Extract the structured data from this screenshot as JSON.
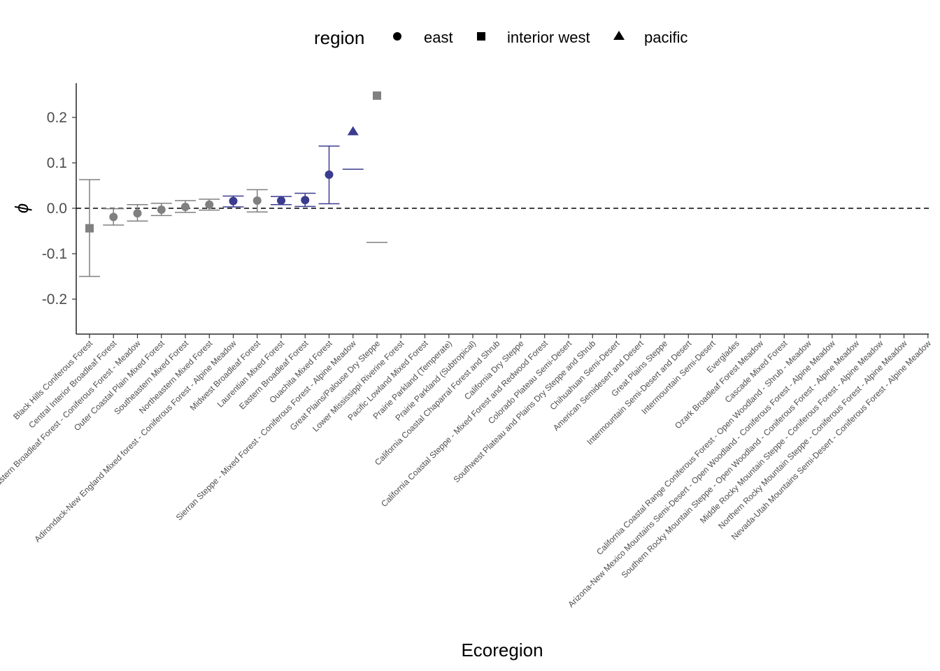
{
  "chart_data": {
    "type": "scatter",
    "title": "",
    "xlabel": "Ecoregion",
    "ylabel": "ϕ",
    "ylim": [
      -0.27,
      0.28
    ],
    "yticks": [
      -0.2,
      -0.1,
      0.0,
      0.1,
      0.2
    ],
    "ytick_labels": [
      "-0.2",
      "-0.1",
      "0.0",
      "0.1",
      "0.2"
    ],
    "grid": false,
    "reference_line": {
      "y": 0,
      "style": "dashed"
    },
    "legend": {
      "title": "region",
      "position": "top",
      "entries": [
        {
          "label": "east",
          "shape": "circle"
        },
        {
          "label": "interior west",
          "shape": "square"
        },
        {
          "label": "pacific",
          "shape": "triangle"
        }
      ]
    },
    "colors": {
      "gray": "#808080",
      "blue": "#3b3b8f"
    },
    "categories": [
      "Black Hills Coniferous Forest",
      "Central Interior Broadleaf Forest",
      "Southeastern Broadleaf Forest - Coniferous Forest - Meadow",
      "Outer Coastal Plain Mixed Forest",
      "Southeastern Mixed Forest",
      "Northeastern Mixed Forest",
      "Adirondack-New England Mixed forest - Coniferous Forest - Alpine Meadow",
      "Midwest Broadleaf Forest",
      "Laurentian Mixed Forest",
      "Eastern Broadleaf Forest",
      "Ouachita Mixed Forest",
      "Sierran Steppe - Mixed Forest - Coniferous Forest - Alpine Meadow",
      "Great Plains/Palouse Dry Steppe",
      "Lower Mississippi Riverine Forest",
      "Pacific Lowland Mixed Forest",
      "Prairie Parkland (Temperate)",
      "Prairie Parkland (Subtropical)",
      "California Coastal Chaparral Forest and Shrub",
      "California Dry Steppe",
      "California Coastal Steppe - Mixed Forest and Redwood Forest",
      "Colorado Plateau Semi-Desert",
      "Southwest Plateau and Plains Dry Steppe and Shrub",
      "Chihuahuan Semi-Desert",
      "American Semidesert and Desert",
      "Great Plains Steppe",
      "Intermountain Semi-Desert and Desert",
      "Intermountain Semi-Desert",
      "Everglades",
      "Ozark Broadleaf Forest Meadow",
      "Cascade Mixed Forest",
      "California Coastal Range Coniferous Forest - Open Woodland - Shrub - Meadow",
      "Arizona-New Mexico Mountains Semi-Desert - Open Woodland - Coniferous Forest - Alpine Meadow",
      "Southern Rocky Mountain Steppe - Open Woodland - Coniferous Forest - Alpine Meadow",
      "Middle Rocky Mountain Steppe - Coniferous Forest - Alpine Meadow",
      "Northern Rocky Mountain Steppe - Coniferous Forest - Alpine Meadow",
      "Nevada-Utah Mountains Semi-Desert - Coniferous Forest - Alpine Meadow"
    ],
    "points": [
      {
        "x": "Black Hills Coniferous Forest",
        "y": -0.044,
        "lower": -0.15,
        "upper": 0.063,
        "region": "interior west",
        "color": "#808080"
      },
      {
        "x": "Central Interior Broadleaf Forest",
        "y": -0.019,
        "lower": -0.037,
        "upper": -0.001,
        "region": "east",
        "color": "#808080"
      },
      {
        "x": "Southeastern Broadleaf Forest - Coniferous Forest - Meadow",
        "y": -0.011,
        "lower": -0.028,
        "upper": 0.008,
        "region": "east",
        "color": "#808080"
      },
      {
        "x": "Outer Coastal Plain Mixed Forest",
        "y": -0.003,
        "lower": -0.016,
        "upper": 0.011,
        "region": "east",
        "color": "#808080"
      },
      {
        "x": "Southeastern Mixed Forest",
        "y": 0.003,
        "lower": -0.009,
        "upper": 0.017,
        "region": "east",
        "color": "#808080"
      },
      {
        "x": "Northeastern Mixed Forest",
        "y": 0.008,
        "lower": -0.004,
        "upper": 0.02,
        "region": "east",
        "color": "#808080"
      },
      {
        "x": "Adirondack-New England Mixed forest - Coniferous Forest - Alpine Meadow",
        "y": 0.016,
        "lower": 0.003,
        "upper": 0.027,
        "region": "east",
        "color": "#3b3b8f"
      },
      {
        "x": "Midwest Broadleaf Forest",
        "y": 0.017,
        "lower": -0.008,
        "upper": 0.041,
        "region": "east",
        "color": "#808080"
      },
      {
        "x": "Laurentian Mixed Forest",
        "y": 0.017,
        "lower": 0.008,
        "upper": 0.026,
        "region": "east",
        "color": "#3b3b8f"
      },
      {
        "x": "Eastern Broadleaf Forest",
        "y": 0.018,
        "lower": 0.004,
        "upper": 0.033,
        "region": "east",
        "color": "#3b3b8f"
      },
      {
        "x": "Ouachita Mixed Forest",
        "y": 0.074,
        "lower": 0.01,
        "upper": 0.137,
        "region": "east",
        "color": "#3b3b8f"
      },
      {
        "x": "Sierran Steppe - Mixed Forest - Coniferous Forest - Alpine Meadow",
        "y": 0.17,
        "lower": 0.086,
        "upper": 0.086,
        "region": "pacific",
        "color": "#3b3b8f"
      },
      {
        "x": "Great Plains/Palouse Dry Steppe",
        "y": 0.248,
        "lower": -0.075,
        "upper": -0.075,
        "region": "interior west",
        "color": "#808080"
      }
    ]
  }
}
